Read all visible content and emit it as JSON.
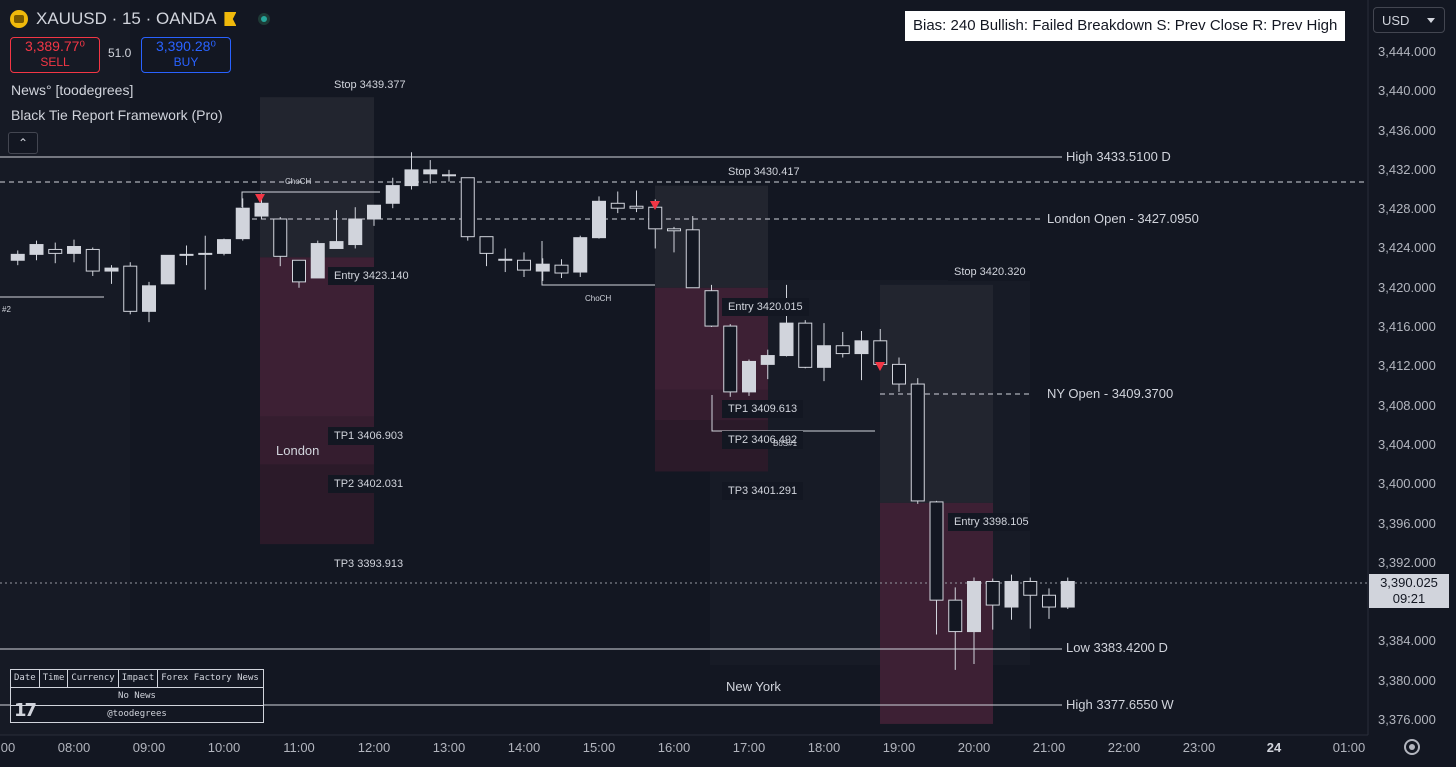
{
  "header": {
    "symbol": "XAUUSD · 15 · OANDA",
    "sell_price": "3,389.77⁰",
    "sell_label": "SELL",
    "buy_price": "3,390.28⁰",
    "buy_label": "BUY",
    "spread": "51.0",
    "indicator_1": "News° [toodegrees]",
    "indicator_2": "Black Tie Report Framework (Pro)",
    "collapse": "⌃"
  },
  "bias_banner": "Bias: 240  Bullish: Failed Breakdown  S: Prev Close  R: Prev High",
  "currency_select": "USD",
  "price_axis": [
    "3,444.000",
    "3,440.000",
    "3,436.000",
    "3,432.000",
    "3,428.000",
    "3,424.000",
    "3,420.000",
    "3,416.000",
    "3,412.000",
    "3,408.000",
    "3,404.000",
    "3,400.000",
    "3,396.000",
    "3,392.000",
    "3,388.000",
    "3,384.000",
    "3,380.000",
    "3,376.000"
  ],
  "current_price": {
    "price": "3,390.025",
    "countdown": "09:21"
  },
  "time_axis": [
    "00",
    "08:00",
    "09:00",
    "10:00",
    "11:00",
    "12:00",
    "13:00",
    "14:00",
    "15:00",
    "16:00",
    "17:00",
    "18:00",
    "19:00",
    "20:00",
    "21:00",
    "22:00",
    "23:00",
    "24",
    "01:00"
  ],
  "levels": {
    "high_d": "High  3433.5100  D",
    "london_open": "London Open - 3427.0950",
    "ny_open": "NY Open - 3409.3700",
    "low_d": "Low   3383.4200  D",
    "high_w": "High  3377.6550  W"
  },
  "trade_labels": {
    "stop1": "Stop  3439.377",
    "entry1": "Entry 3423.140",
    "tp1_1": "TP1  3406.903",
    "tp2_1": "TP2  3402.031",
    "tp3_1": "TP3  3393.913",
    "stop2": "Stop  3430.417",
    "entry2": "Entry 3420.015",
    "tp1_2": "TP1  3409.613",
    "tp2_2": "TP2  3406.492",
    "tp3_2": "TP3  3401.291",
    "stop3": "Stop  3420.320",
    "entry3": "Entry 3398.105"
  },
  "sessions": {
    "london": "London",
    "new_york": "New York"
  },
  "structure": {
    "choch_1": "ChoCH",
    "choch_2": "ChoCH",
    "bos": "BoS#1",
    "tag": "#2"
  },
  "news_table": {
    "headers": [
      "Date",
      "Time",
      "Currency",
      "Impact",
      "Forex Factory News"
    ],
    "row": "No News",
    "credit": "@toodegrees"
  },
  "colors": {
    "bg": "#131722",
    "bull": "#d1d4dc",
    "bear": "#131722",
    "sell": "#f23645",
    "buy": "#2962ff",
    "stop_zone": "#22252f",
    "target_zone": "#3a1f30"
  },
  "chart_data": {
    "type": "candlestick",
    "symbol": "XAUUSD",
    "timeframe": "15",
    "ylim": [
      3374,
      3446
    ],
    "candles": [
      {
        "t": "07:15",
        "o": 3422.8,
        "h": 3423.8,
        "l": 3422.3,
        "c": 3423.4
      },
      {
        "t": "07:30",
        "o": 3423.4,
        "h": 3424.8,
        "l": 3422.8,
        "c": 3424.4
      },
      {
        "t": "07:45",
        "o": 3423.9,
        "h": 3424.6,
        "l": 3422.5,
        "c": 3423.5
      },
      {
        "t": "08:00",
        "o": 3423.5,
        "h": 3424.9,
        "l": 3422.6,
        "c": 3424.2
      },
      {
        "t": "08:15",
        "o": 3423.9,
        "h": 3424.1,
        "l": 3421.2,
        "c": 3421.7
      },
      {
        "t": "08:30",
        "o": 3421.7,
        "h": 3422.3,
        "l": 3420.4,
        "c": 3422.0
      },
      {
        "t": "08:45",
        "o": 3422.2,
        "h": 3422.6,
        "l": 3417.3,
        "c": 3417.6
      },
      {
        "t": "09:00",
        "o": 3417.6,
        "h": 3420.6,
        "l": 3416.5,
        "c": 3420.2
      },
      {
        "t": "09:15",
        "o": 3420.4,
        "h": 3423.3,
        "l": 3420.4,
        "c": 3423.3
      },
      {
        "t": "09:30",
        "o": 3423.3,
        "h": 3424.3,
        "l": 3422.3,
        "c": 3423.4
      },
      {
        "t": "09:45",
        "o": 3423.4,
        "h": 3425.3,
        "l": 3419.8,
        "c": 3423.5
      },
      {
        "t": "10:00",
        "o": 3423.5,
        "h": 3425.0,
        "l": 3423.3,
        "c": 3424.9
      },
      {
        "t": "10:15",
        "o": 3425.0,
        "h": 3429.1,
        "l": 3424.8,
        "c": 3428.1
      },
      {
        "t": "10:30",
        "o": 3427.3,
        "h": 3429.6,
        "l": 3427.0,
        "c": 3428.6
      },
      {
        "t": "10:45",
        "o": 3427.0,
        "h": 3427.2,
        "l": 3422.2,
        "c": 3423.2
      },
      {
        "t": "11:00",
        "o": 3422.8,
        "h": 3422.8,
        "l": 3420.0,
        "c": 3420.6
      },
      {
        "t": "11:15",
        "o": 3421.0,
        "h": 3424.8,
        "l": 3421.0,
        "c": 3424.5
      },
      {
        "t": "11:30",
        "o": 3424.0,
        "h": 3427.9,
        "l": 3424.0,
        "c": 3424.7
      },
      {
        "t": "11:45",
        "o": 3424.4,
        "h": 3428.2,
        "l": 3424.0,
        "c": 3427.0
      },
      {
        "t": "12:00",
        "o": 3427.0,
        "h": 3428.4,
        "l": 3426.3,
        "c": 3428.4
      },
      {
        "t": "12:15",
        "o": 3428.6,
        "h": 3431.2,
        "l": 3428.1,
        "c": 3430.4
      },
      {
        "t": "12:30",
        "o": 3430.4,
        "h": 3433.8,
        "l": 3430.0,
        "c": 3432.0
      },
      {
        "t": "12:45",
        "o": 3431.6,
        "h": 3433.0,
        "l": 3430.6,
        "c": 3432.0
      },
      {
        "t": "13:00",
        "o": 3431.5,
        "h": 3432.0,
        "l": 3430.8,
        "c": 3431.4
      },
      {
        "t": "13:15",
        "o": 3431.2,
        "h": 3431.2,
        "l": 3424.8,
        "c": 3425.2
      },
      {
        "t": "13:30",
        "o": 3425.2,
        "h": 3425.2,
        "l": 3422.2,
        "c": 3423.5
      },
      {
        "t": "13:45",
        "o": 3422.9,
        "h": 3424.0,
        "l": 3421.6,
        "c": 3422.9
      },
      {
        "t": "14:00",
        "o": 3422.8,
        "h": 3423.6,
        "l": 3421.1,
        "c": 3421.8
      },
      {
        "t": "14:15",
        "o": 3421.7,
        "h": 3423.0,
        "l": 3420.7,
        "c": 3422.4
      },
      {
        "t": "14:30",
        "o": 3422.3,
        "h": 3422.9,
        "l": 3421.0,
        "c": 3421.5
      },
      {
        "t": "14:45",
        "o": 3421.6,
        "h": 3425.3,
        "l": 3421.1,
        "c": 3425.1
      },
      {
        "t": "15:00",
        "o": 3425.1,
        "h": 3429.3,
        "l": 3425.0,
        "c": 3428.8
      },
      {
        "t": "15:15",
        "o": 3428.6,
        "h": 3429.8,
        "l": 3427.6,
        "c": 3428.1
      },
      {
        "t": "15:30",
        "o": 3428.3,
        "h": 3429.9,
        "l": 3427.7,
        "c": 3428.1
      },
      {
        "t": "15:45",
        "o": 3428.2,
        "h": 3429.0,
        "l": 3424.0,
        "c": 3426.0
      },
      {
        "t": "16:00",
        "o": 3426.0,
        "h": 3426.2,
        "l": 3423.6,
        "c": 3425.8
      },
      {
        "t": "16:15",
        "o": 3425.9,
        "h": 3427.3,
        "l": 3420.0,
        "c": 3420.0
      },
      {
        "t": "16:30",
        "o": 3419.7,
        "h": 3420.3,
        "l": 3416.0,
        "c": 3416.1
      },
      {
        "t": "16:45",
        "o": 3416.1,
        "h": 3416.3,
        "l": 3408.9,
        "c": 3409.4
      },
      {
        "t": "17:00",
        "o": 3409.4,
        "h": 3412.7,
        "l": 3409.0,
        "c": 3412.5
      },
      {
        "t": "17:15",
        "o": 3412.2,
        "h": 3413.7,
        "l": 3410.7,
        "c": 3413.1
      },
      {
        "t": "17:30",
        "o": 3413.1,
        "h": 3420.3,
        "l": 3413.0,
        "c": 3416.4
      },
      {
        "t": "17:45",
        "o": 3416.4,
        "h": 3416.7,
        "l": 3411.8,
        "c": 3411.9
      },
      {
        "t": "18:00",
        "o": 3411.9,
        "h": 3416.4,
        "l": 3410.5,
        "c": 3414.1
      },
      {
        "t": "18:15",
        "o": 3414.1,
        "h": 3415.5,
        "l": 3412.9,
        "c": 3413.3
      },
      {
        "t": "18:30",
        "o": 3413.3,
        "h": 3415.6,
        "l": 3410.6,
        "c": 3414.6
      },
      {
        "t": "18:45",
        "o": 3414.6,
        "h": 3415.8,
        "l": 3411.8,
        "c": 3412.2
      },
      {
        "t": "19:00",
        "o": 3412.2,
        "h": 3412.9,
        "l": 3409.4,
        "c": 3410.2
      },
      {
        "t": "19:15",
        "o": 3410.2,
        "h": 3410.8,
        "l": 3398.0,
        "c": 3398.3
      },
      {
        "t": "19:30",
        "o": 3398.2,
        "h": 3398.3,
        "l": 3384.7,
        "c": 3388.2
      },
      {
        "t": "19:45",
        "o": 3388.2,
        "h": 3389.5,
        "l": 3381.1,
        "c": 3385.0
      },
      {
        "t": "20:00",
        "o": 3385.0,
        "h": 3390.5,
        "l": 3381.7,
        "c": 3390.1
      },
      {
        "t": "20:15",
        "o": 3390.1,
        "h": 3390.4,
        "l": 3385.2,
        "c": 3387.7
      },
      {
        "t": "20:30",
        "o": 3387.5,
        "h": 3390.8,
        "l": 3386.2,
        "c": 3390.1
      },
      {
        "t": "20:45",
        "o": 3390.1,
        "h": 3390.5,
        "l": 3385.3,
        "c": 3388.7
      },
      {
        "t": "21:00",
        "o": 3388.7,
        "h": 3389.4,
        "l": 3386.3,
        "c": 3387.5
      },
      {
        "t": "21:15",
        "o": 3387.5,
        "h": 3390.5,
        "l": 3387.3,
        "c": 3390.1
      }
    ]
  }
}
